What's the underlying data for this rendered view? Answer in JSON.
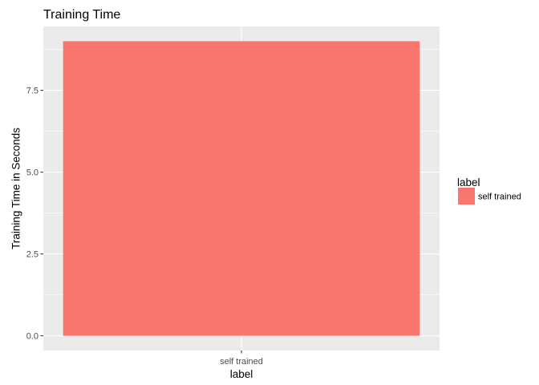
{
  "chart_data": {
    "type": "bar",
    "title": "Training Time",
    "xlabel": "label",
    "ylabel": "Training Time in Seconds",
    "categories": [
      "self trained"
    ],
    "values": [
      9
    ],
    "ylim": [
      -0.45,
      9.45
    ],
    "yticks": [
      0.0,
      2.5,
      5.0,
      7.5
    ],
    "ytick_labels": [
      "0.0",
      "2.5",
      "5.0",
      "7.5"
    ],
    "grid": true,
    "legend": {
      "title": "label",
      "position": "right",
      "entries": [
        {
          "label": "self trained",
          "color": "#F8766D"
        }
      ]
    },
    "colors": {
      "bar": "#F8766D",
      "panel_background": "#EBEBEB",
      "grid": "#FFFFFF",
      "tick_text": "#4D4D4D",
      "tick_mark": "#333333"
    }
  }
}
